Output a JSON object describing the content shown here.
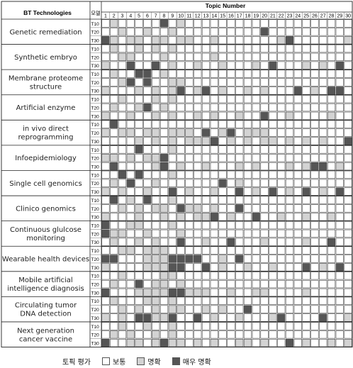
{
  "chart_data": {
    "type": "heatmap",
    "header": {
      "row_label": "BT Technologies",
      "model_label": "모델",
      "column_group_label": "Topic Number"
    },
    "topics": [
      1,
      2,
      3,
      4,
      5,
      6,
      7,
      8,
      9,
      10,
      11,
      12,
      13,
      14,
      15,
      16,
      17,
      18,
      19,
      20,
      21,
      22,
      23,
      24,
      25,
      26,
      27,
      28,
      29,
      30
    ],
    "models": [
      "T10",
      "T20",
      "T30"
    ],
    "levels": [
      {
        "value": 0,
        "label": "보통",
        "color": "#ffffff"
      },
      {
        "value": 1,
        "label": "명확",
        "color": "#d3d3d3"
      },
      {
        "value": 2,
        "label": "매우 명확",
        "color": "#555555"
      }
    ],
    "legend_title": "토픽 평가",
    "technologies": [
      {
        "name": "Genetic remediation",
        "rows": [
          [
            0,
            1,
            0,
            0,
            0,
            0,
            0,
            2,
            0,
            1
          ],
          [
            0,
            0,
            1,
            0,
            0,
            1,
            0,
            0,
            1,
            0,
            0,
            0,
            0,
            0,
            0,
            0,
            0,
            0,
            0,
            2
          ],
          [
            2,
            1,
            0,
            1,
            1,
            0,
            1,
            1,
            0,
            1,
            1,
            0,
            0,
            1,
            0,
            0,
            0,
            0,
            0,
            0,
            0,
            1,
            2,
            0,
            0,
            0,
            0,
            0,
            0,
            1
          ]
        ]
      },
      {
        "name": "Synthetic embryo",
        "rows": [
          [
            0,
            1,
            0,
            0,
            1,
            0,
            1,
            0,
            1,
            0
          ],
          [
            0,
            0,
            1,
            1,
            0,
            0,
            0,
            1,
            0,
            0,
            0,
            0,
            0,
            1,
            0,
            0,
            0,
            0,
            0,
            0
          ],
          [
            1,
            0,
            0,
            2,
            0,
            0,
            2,
            0,
            1,
            0,
            0,
            1,
            0,
            0,
            1,
            0,
            0,
            0,
            1,
            0,
            2,
            0,
            0,
            0,
            1,
            0,
            1,
            0,
            2,
            0
          ]
        ]
      },
      {
        "name": "Membrane proteome\nstructure",
        "rows": [
          [
            0,
            1,
            0,
            0,
            2,
            2,
            0,
            1,
            0,
            0
          ],
          [
            0,
            0,
            1,
            2,
            0,
            2,
            0,
            0,
            1,
            1,
            0,
            0,
            0,
            0,
            0,
            0,
            0,
            0,
            0,
            0
          ],
          [
            1,
            0,
            0,
            0,
            1,
            0,
            1,
            0,
            1,
            2,
            0,
            1,
            2,
            0,
            1,
            0,
            0,
            1,
            0,
            1,
            0,
            0,
            0,
            2,
            0,
            1,
            0,
            2,
            2,
            0
          ]
        ]
      },
      {
        "name": "Artificial enzyme",
        "rows": [
          [
            0,
            0,
            1,
            0,
            0,
            0,
            1,
            0,
            1,
            0
          ],
          [
            0,
            1,
            0,
            0,
            1,
            2,
            0,
            1,
            0,
            0,
            0,
            0,
            0,
            0,
            0,
            0,
            0,
            0,
            0,
            0
          ],
          [
            1,
            0,
            0,
            1,
            0,
            0,
            1,
            0,
            1,
            0,
            0,
            1,
            0,
            1,
            0,
            0,
            1,
            0,
            0,
            2,
            0,
            0,
            1,
            0,
            0,
            0,
            0,
            1,
            0,
            0
          ]
        ]
      },
      {
        "name": "in vivo direct\nreprogramming",
        "rows": [
          [
            0,
            2,
            0,
            0,
            0,
            0,
            0,
            0,
            0,
            0
          ],
          [
            1,
            0,
            1,
            1,
            0,
            1,
            1,
            0,
            1,
            1,
            1,
            0,
            2,
            0,
            1,
            2,
            0,
            1,
            1,
            1
          ],
          [
            0,
            0,
            0,
            0,
            1,
            0,
            1,
            0,
            1,
            0,
            1,
            1,
            1,
            2,
            0,
            1,
            0,
            1,
            0,
            1,
            1,
            0,
            1,
            0,
            1,
            0,
            1,
            0,
            0,
            2
          ]
        ]
      },
      {
        "name": "Infoepidemiology",
        "rows": [
          [
            0,
            0,
            0,
            0,
            2,
            0,
            0,
            0,
            1,
            0
          ],
          [
            1,
            1,
            0,
            1,
            0,
            1,
            1,
            2,
            0,
            0,
            0,
            0,
            0,
            0,
            0,
            0,
            0,
            0,
            0,
            0
          ],
          [
            0,
            2,
            0,
            0,
            0,
            0,
            1,
            2,
            0,
            1,
            0,
            0,
            1,
            0,
            0,
            0,
            1,
            0,
            1,
            0,
            0,
            0,
            1,
            0,
            1,
            2,
            2,
            0,
            1,
            0
          ]
        ]
      },
      {
        "name": "Single cell genomics",
        "rows": [
          [
            0,
            0,
            2,
            0,
            2,
            0,
            0,
            0,
            1,
            0
          ],
          [
            0,
            1,
            0,
            2,
            0,
            0,
            1,
            0,
            0,
            0,
            0,
            0,
            0,
            0,
            2,
            0,
            1,
            0,
            0,
            0
          ],
          [
            1,
            0,
            1,
            0,
            0,
            1,
            0,
            0,
            2,
            0,
            1,
            0,
            0,
            1,
            0,
            0,
            2,
            0,
            1,
            0,
            2,
            0,
            1,
            0,
            2,
            0,
            1,
            0,
            2,
            0
          ]
        ]
      },
      {
        "name": "Clinico genomics",
        "rows": [
          [
            0,
            2,
            0,
            1,
            0,
            2,
            0,
            0,
            1,
            0
          ],
          [
            0,
            0,
            1,
            0,
            1,
            0,
            1,
            1,
            0,
            2,
            1,
            1,
            0,
            1,
            0,
            0,
            2,
            0,
            0,
            0
          ],
          [
            1,
            0,
            0,
            0,
            1,
            0,
            0,
            1,
            0,
            1,
            0,
            1,
            1,
            2,
            0,
            1,
            0,
            0,
            2,
            0,
            0,
            1,
            0,
            0,
            1,
            0,
            0,
            1,
            0,
            0
          ]
        ]
      },
      {
        "name": "Continuous glulcose\nmonitoring",
        "rows": [
          [
            2,
            0,
            0,
            1,
            1,
            0,
            0,
            0,
            1,
            0
          ],
          [
            2,
            1,
            1,
            0,
            0,
            1,
            0,
            0,
            0,
            1,
            0,
            0,
            0,
            0,
            0,
            0,
            0,
            0,
            0,
            0
          ],
          [
            0,
            1,
            0,
            0,
            1,
            0,
            1,
            0,
            0,
            2,
            0,
            0,
            1,
            0,
            0,
            2,
            0,
            0,
            0,
            1,
            0,
            0,
            0,
            0,
            1,
            0,
            0,
            2,
            0,
            0
          ]
        ]
      },
      {
        "name": "Wearable health devices",
        "rows": [
          [
            0,
            0,
            1,
            1,
            0,
            1,
            1,
            1,
            0,
            0
          ],
          [
            2,
            2,
            0,
            0,
            0,
            1,
            1,
            1,
            2,
            2,
            2,
            2,
            0,
            0,
            1,
            0,
            2,
            0,
            0,
            0
          ],
          [
            1,
            0,
            0,
            0,
            0,
            1,
            1,
            1,
            2,
            2,
            0,
            0,
            2,
            0,
            1,
            0,
            0,
            1,
            0,
            0,
            1,
            0,
            0,
            0,
            2,
            0,
            1,
            0,
            2,
            0
          ]
        ]
      },
      {
        "name": "Mobile artificial\nintelligence diagnosis",
        "rows": [
          [
            0,
            0,
            1,
            0,
            0,
            0,
            0,
            1,
            1,
            0
          ],
          [
            0,
            1,
            0,
            0,
            2,
            0,
            1,
            1,
            0,
            1,
            0,
            0,
            0,
            0,
            0,
            0,
            0,
            0,
            0,
            0
          ],
          [
            2,
            0,
            0,
            0,
            1,
            1,
            1,
            1,
            2,
            2,
            1,
            1,
            1,
            0,
            0,
            1,
            0,
            0,
            1,
            1,
            0,
            0,
            0,
            0,
            1,
            0,
            0,
            0,
            0,
            0
          ]
        ]
      },
      {
        "name": "Circulating tumor\nDNA detection",
        "rows": [
          [
            0,
            1,
            0,
            0,
            0,
            1,
            1,
            0,
            1,
            0
          ],
          [
            0,
            0,
            1,
            0,
            1,
            0,
            1,
            0,
            1,
            1,
            0,
            0,
            1,
            0,
            1,
            0,
            0,
            2,
            0,
            0
          ],
          [
            1,
            0,
            1,
            0,
            2,
            2,
            1,
            1,
            2,
            0,
            0,
            2,
            0,
            1,
            0,
            0,
            1,
            0,
            0,
            0,
            1,
            2,
            0,
            0,
            0,
            0,
            2,
            0,
            0,
            1
          ]
        ]
      },
      {
        "name": "Next generation\ncancer vaccine",
        "rows": [
          [
            0,
            0,
            1,
            0,
            0,
            1,
            0,
            0,
            1,
            0
          ],
          [
            0,
            1,
            0,
            1,
            0,
            0,
            1,
            0,
            1,
            0,
            0,
            0,
            0,
            0,
            0,
            0,
            0,
            0,
            0,
            0
          ],
          [
            2,
            0,
            0,
            1,
            1,
            0,
            1,
            2,
            1,
            1,
            0,
            1,
            0,
            1,
            0,
            0,
            1,
            1,
            0,
            1,
            0,
            0,
            2,
            0,
            1,
            0,
            0,
            1,
            0,
            1
          ]
        ]
      }
    ]
  }
}
